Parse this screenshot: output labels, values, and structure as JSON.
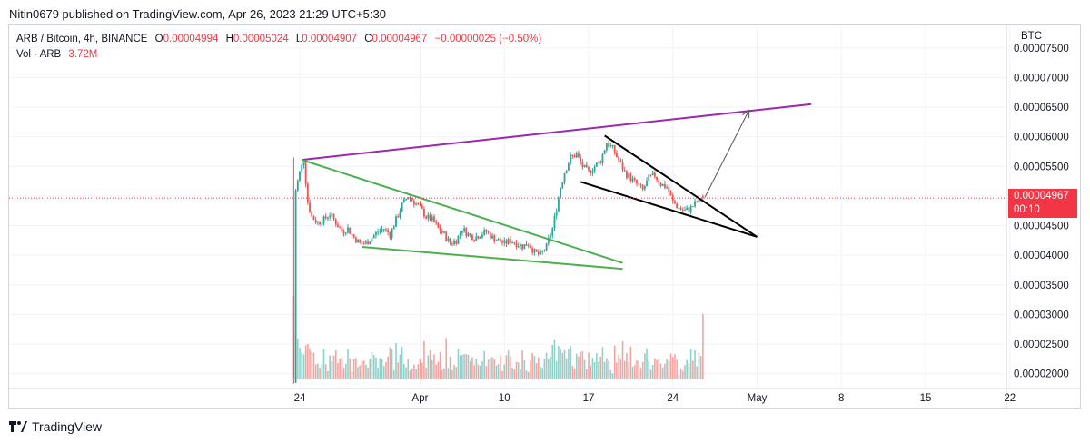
{
  "header": {
    "publish_line": "Nitin0679 published on TradingView.com, Apr 26, 2023 21:29 UTC+5:30"
  },
  "legend": {
    "symbol": "ARB / Bitcoin, 4h, BINANCE",
    "o_label": "O",
    "o_value": "0.00004994",
    "h_label": "H",
    "h_value": "0.00005024",
    "l_label": "L",
    "l_value": "0.00004907",
    "c_label": "C",
    "c_value": "0.00004967",
    "change": "−0.00000025 (−0.50%)",
    "vol_label": "Vol · ARB",
    "vol_value": "3.72M"
  },
  "price_axis": {
    "currency": "BTC",
    "current_price": "0.00004967",
    "countdown": "00:10"
  },
  "footer": {
    "brand": "TradingView"
  },
  "colors": {
    "up": "#26a69a",
    "down": "#ef5350",
    "vol_up": "#8fd0c8",
    "vol_down": "#f5a3a1",
    "channel": "#9c27b0",
    "wedge_green": "#4caf50",
    "wedge_black": "#000000",
    "price_line": "#f23645"
  },
  "chart_data": {
    "type": "candlestick",
    "symbol": "ARB / Bitcoin",
    "interval": "4h",
    "exchange": "BINANCE",
    "ylim": [
      1.75e-05,
      7.88e-05
    ],
    "y_ticks": [
      "0.00002000",
      "0.00002500",
      "0.00003000",
      "0.00003500",
      "0.00004000",
      "0.00004500",
      "0.00005000",
      "0.00005500",
      "0.00006000",
      "0.00006500",
      "0.00007000",
      "0.00007500"
    ],
    "x_ticks": [
      "24",
      "Apr",
      "10",
      "17",
      "24",
      "May",
      "8",
      "15",
      "22"
    ],
    "x_tick_dates": [
      "2023-03-24",
      "2023-04-03",
      "2023-04-10",
      "2023-04-17",
      "2023-04-24",
      "2023-05-01",
      "2023-05-08",
      "2023-05-15",
      "2023-05-22"
    ],
    "close_path": [
      [
        "2023-03-23T12:00",
        1.85e-05
      ],
      [
        "2023-03-23T16:00",
        5.1e-05
      ],
      [
        "2023-03-24T00:00",
        5.4e-05
      ],
      [
        "2023-03-24T08:00",
        5.6e-05
      ],
      [
        "2023-03-24T16:00",
        4.9e-05
      ],
      [
        "2023-03-25T00:00",
        4.65e-05
      ],
      [
        "2023-03-25T12:00",
        4.55e-05
      ],
      [
        "2023-03-26T00:00",
        4.6e-05
      ],
      [
        "2023-03-26T12:00",
        4.7e-05
      ],
      [
        "2023-03-27T00:00",
        4.55e-05
      ],
      [
        "2023-03-27T12:00",
        4.4e-05
      ],
      [
        "2023-03-28T00:00",
        4.45e-05
      ],
      [
        "2023-03-28T12:00",
        4.3e-05
      ],
      [
        "2023-03-29T00:00",
        4.2e-05
      ],
      [
        "2023-03-29T12:00",
        4.2e-05
      ],
      [
        "2023-03-30T00:00",
        4.3e-05
      ],
      [
        "2023-03-30T12:00",
        4.4e-05
      ],
      [
        "2023-03-31T00:00",
        4.45e-05
      ],
      [
        "2023-03-31T12:00",
        4.35e-05
      ],
      [
        "2023-04-01T00:00",
        4.6e-05
      ],
      [
        "2023-04-01T12:00",
        4.85e-05
      ],
      [
        "2023-04-02T00:00",
        5e-05
      ],
      [
        "2023-04-02T12:00",
        4.9e-05
      ],
      [
        "2023-04-03T00:00",
        4.8e-05
      ],
      [
        "2023-04-03T12:00",
        4.65e-05
      ],
      [
        "2023-04-04T00:00",
        4.6e-05
      ],
      [
        "2023-04-04T12:00",
        4.45e-05
      ],
      [
        "2023-04-05T00:00",
        4.35e-05
      ],
      [
        "2023-04-05T12:00",
        4.2e-05
      ],
      [
        "2023-04-06T00:00",
        4.25e-05
      ],
      [
        "2023-04-06T12:00",
        4.45e-05
      ],
      [
        "2023-04-07T00:00",
        4.35e-05
      ],
      [
        "2023-04-07T12:00",
        4.3e-05
      ],
      [
        "2023-04-08T00:00",
        4.35e-05
      ],
      [
        "2023-04-08T12:00",
        4.4e-05
      ],
      [
        "2023-04-09T00:00",
        4.3e-05
      ],
      [
        "2023-04-09T12:00",
        4.25e-05
      ],
      [
        "2023-04-10T00:00",
        4.2e-05
      ],
      [
        "2023-04-10T12:00",
        4.25e-05
      ],
      [
        "2023-04-11T00:00",
        4.2e-05
      ],
      [
        "2023-04-11T12:00",
        4.15e-05
      ],
      [
        "2023-04-12T00:00",
        4.2e-05
      ],
      [
        "2023-04-12T12:00",
        4.05e-05
      ],
      [
        "2023-04-13T00:00",
        4e-05
      ],
      [
        "2023-04-13T12:00",
        4.15e-05
      ],
      [
        "2023-04-14T00:00",
        4.45e-05
      ],
      [
        "2023-04-14T08:00",
        4.8e-05
      ],
      [
        "2023-04-14T16:00",
        5.15e-05
      ],
      [
        "2023-04-15T00:00",
        5.4e-05
      ],
      [
        "2023-04-15T12:00",
        5.65e-05
      ],
      [
        "2023-04-16T00:00",
        5.7e-05
      ],
      [
        "2023-04-16T12:00",
        5.5e-05
      ],
      [
        "2023-04-17T00:00",
        5.4e-05
      ],
      [
        "2023-04-17T12:00",
        5.5e-05
      ],
      [
        "2023-04-18T00:00",
        5.6e-05
      ],
      [
        "2023-04-18T12:00",
        5.9e-05
      ],
      [
        "2023-04-19T00:00",
        5.8e-05
      ],
      [
        "2023-04-19T12:00",
        5.6e-05
      ],
      [
        "2023-04-20T00:00",
        5.4e-05
      ],
      [
        "2023-04-20T12:00",
        5.3e-05
      ],
      [
        "2023-04-21T00:00",
        5.2e-05
      ],
      [
        "2023-04-21T12:00",
        5.1e-05
      ],
      [
        "2023-04-22T00:00",
        5.3e-05
      ],
      [
        "2023-04-22T12:00",
        5.35e-05
      ],
      [
        "2023-04-23T00:00",
        5.2e-05
      ],
      [
        "2023-04-23T12:00",
        5.15e-05
      ],
      [
        "2023-04-24T00:00",
        4.9e-05
      ],
      [
        "2023-04-24T12:00",
        4.8e-05
      ],
      [
        "2023-04-25T00:00",
        4.75e-05
      ],
      [
        "2023-04-25T12:00",
        4.8e-05
      ],
      [
        "2023-04-26T00:00",
        4.9e-05
      ],
      [
        "2023-04-26T12:00",
        4.97e-05
      ]
    ],
    "last": {
      "open": 4.994e-05,
      "high": 5.024e-05,
      "low": 4.907e-05,
      "close": 4.967e-05,
      "volume": "3.72M"
    },
    "trendlines": [
      {
        "name": "purple channel top",
        "color": "#9c27b0",
        "from": [
          "2023-03-24T04:00",
          5.61e-05
        ],
        "to": [
          "2023-05-05T12:00",
          6.55e-05
        ]
      },
      {
        "name": "green wedge upper",
        "color": "#4caf50",
        "from": [
          "2023-03-24T04:00",
          5.61e-05
        ],
        "to": [
          "2023-04-19T20:00",
          3.87e-05
        ]
      },
      {
        "name": "green wedge lower",
        "color": "#4caf50",
        "from": [
          "2023-03-29T04:00",
          4.14e-05
        ],
        "to": [
          "2023-04-19T20:00",
          3.77e-05
        ]
      },
      {
        "name": "black wedge upper",
        "color": "#000000",
        "from": [
          "2023-04-18T08:00",
          6.02e-05
        ],
        "to": [
          "2023-05-01T00:00",
          4.31e-05
        ]
      },
      {
        "name": "black wedge lower",
        "color": "#000000",
        "from": [
          "2023-04-16T08:00",
          5.24e-05
        ],
        "to": [
          "2023-05-01T00:00",
          4.31e-05
        ]
      },
      {
        "name": "projection arrow",
        "color": "#555555",
        "from": [
          "2023-04-26T16:00",
          4.98e-05
        ],
        "to": [
          "2023-04-30T08:00",
          6.45e-05
        ]
      }
    ]
  }
}
